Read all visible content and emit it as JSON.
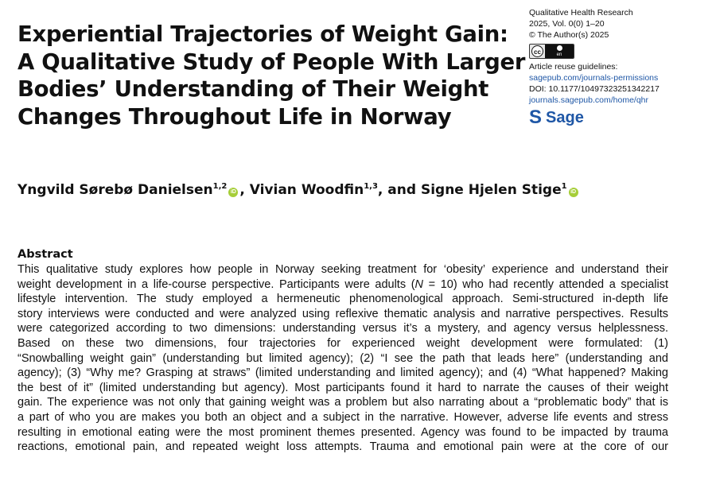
{
  "title_lines": [
    "Experiential Trajectories of Weight Gain:",
    "A Qualitative Study of People With Larger",
    "Bodies’ Understanding of Their Weight",
    "Changes Throughout Life in Norway"
  ],
  "journal": {
    "name": "Qualitative Health Research",
    "volume": "2025, Vol. 0(0) 1–20",
    "copyright": "© The Author(s) 2025",
    "license_badge": {
      "left": "cc",
      "right": "BY",
      "bottom": "en"
    },
    "reuse_label": "Article reuse guidelines:",
    "permissions_link": "sagepub.com/journals-permissions",
    "doi": "DOI: 10.1177/10497323251342217",
    "journal_link": "journals.sagepub.com/home/qhr",
    "publisher": "Sage"
  },
  "authors": {
    "a1_name": "Yngvild Sørebø Danielsen",
    "a1_aff": "1,2",
    "sep1": ", Vivian Woodfin",
    "a2_aff": "1,3",
    "sep2": ", and Signe Hjelen Stige",
    "a3_aff": "1",
    "orcid_icon": "iD"
  },
  "abstract": {
    "heading": "Abstract",
    "lines": [
      "This qualitative study explores how people in Norway seeking treatment for ‘obesity’ experience and understand their",
      "weight development in a life-course perspective. Participants were adults (N = 10) who had recently attended a specialist",
      "lifestyle intervention. The study employed a hermeneutic phenomenological approach. Semi-structured in-depth life",
      "story interviews were conducted and were analyzed using reflexive thematic analysis and narrative perspectives. Results",
      "were categorized according to two dimensions: understanding versus it’s a mystery, and agency versus helplessness.",
      "Based on these two dimensions, four trajectories for experienced weight development were formulated: (1)",
      "“Snowballing weight gain” (understanding but limited agency); (2) “I see the path that leads here” (understanding and",
      "agency); (3) “Why me? Grasping at straws” (limited understanding and limited agency); and (4) “What happened? Making",
      "the best of it” (limited understanding but agency). Most participants found it hard to narrate the causes of their weight",
      "gain. The experience was not only that gaining weight was a problem but also narrating about a “problematic body” that is",
      "a part of who you are makes you both an object and a subject in the narrative. However, adverse life events and stress",
      "resulting in emotional eating were the most prominent themes presented. Agency was found to be impacted by trauma",
      "reactions, emotional pain, and repeated weight loss attempts. Trauma and emotional pain were at the core of our"
    ]
  }
}
